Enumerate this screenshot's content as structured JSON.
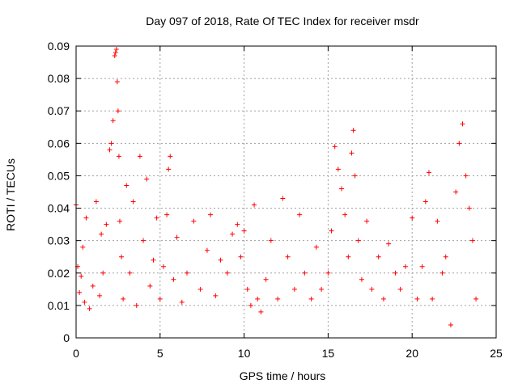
{
  "chart_data": {
    "type": "scatter",
    "title": "Day 097 of 2018, Rate Of TEC Index for receiver msdr",
    "xlabel": "GPS time / hours",
    "ylabel": "ROTI / TECUs",
    "xlim": [
      0,
      25
    ],
    "ylim": [
      0,
      0.09
    ],
    "x_ticks": [
      "0",
      "5",
      "10",
      "15",
      "20",
      "25"
    ],
    "y_ticks": [
      "0",
      "0.01",
      "0.02",
      "0.03",
      "0.04",
      "0.05",
      "0.06",
      "0.07",
      "0.08",
      "0.09"
    ],
    "x_tick_values": [
      0,
      5,
      10,
      15,
      20,
      25
    ],
    "y_tick_values": [
      0,
      0.01,
      0.02,
      0.03,
      0.04,
      0.05,
      0.06,
      0.07,
      0.08,
      0.09
    ],
    "grid": true,
    "marker": "+",
    "colors": {
      "series": "#ff0000",
      "grid": "#a0a0a0",
      "axis": "#000000"
    },
    "series": [
      {
        "x": [
          0.0,
          0.1,
          0.2,
          0.3,
          0.4,
          0.5,
          0.6,
          0.8,
          1.0,
          1.2,
          1.4,
          1.5,
          1.6,
          1.8,
          2.0,
          2.1,
          2.2,
          2.3,
          2.35,
          2.4,
          2.45,
          2.5,
          2.55,
          2.6,
          2.7,
          2.8,
          3.0,
          3.2,
          3.4,
          3.6,
          3.8,
          4.0,
          4.2,
          4.4,
          4.6,
          4.8,
          5.0,
          5.2,
          5.4,
          5.5,
          5.6,
          5.8,
          6.0,
          6.3,
          6.6,
          7.0,
          7.4,
          7.8,
          8.0,
          8.3,
          8.6,
          9.0,
          9.3,
          9.6,
          9.8,
          10.0,
          10.2,
          10.4,
          10.6,
          10.8,
          11.0,
          11.3,
          11.6,
          12.0,
          12.3,
          12.6,
          13.0,
          13.3,
          13.6,
          14.0,
          14.3,
          14.6,
          15.0,
          15.2,
          15.4,
          15.6,
          15.8,
          16.0,
          16.2,
          16.4,
          16.5,
          16.6,
          16.8,
          17.0,
          17.3,
          17.6,
          18.0,
          18.3,
          18.6,
          19.0,
          19.3,
          19.6,
          20.0,
          20.3,
          20.6,
          20.8,
          21.0,
          21.2,
          21.5,
          21.8,
          22.0,
          22.3,
          22.6,
          22.8,
          23.0,
          23.2,
          23.4,
          23.6,
          23.8
        ],
        "y": [
          0.041,
          0.022,
          0.014,
          0.019,
          0.028,
          0.011,
          0.037,
          0.009,
          0.016,
          0.042,
          0.013,
          0.032,
          0.02,
          0.035,
          0.058,
          0.06,
          0.067,
          0.087,
          0.088,
          0.089,
          0.079,
          0.07,
          0.056,
          0.036,
          0.025,
          0.012,
          0.047,
          0.02,
          0.042,
          0.01,
          0.056,
          0.03,
          0.049,
          0.016,
          0.024,
          0.037,
          0.012,
          0.022,
          0.038,
          0.052,
          0.056,
          0.018,
          0.031,
          0.011,
          0.02,
          0.036,
          0.015,
          0.027,
          0.038,
          0.013,
          0.024,
          0.02,
          0.032,
          0.035,
          0.025,
          0.033,
          0.015,
          0.01,
          0.041,
          0.012,
          0.008,
          0.018,
          0.03,
          0.012,
          0.043,
          0.025,
          0.015,
          0.038,
          0.02,
          0.012,
          0.028,
          0.015,
          0.02,
          0.033,
          0.059,
          0.052,
          0.046,
          0.038,
          0.025,
          0.057,
          0.064,
          0.05,
          0.03,
          0.018,
          0.036,
          0.015,
          0.025,
          0.012,
          0.029,
          0.02,
          0.015,
          0.022,
          0.037,
          0.012,
          0.022,
          0.042,
          0.051,
          0.012,
          0.036,
          0.02,
          0.025,
          0.004,
          0.045,
          0.06,
          0.066,
          0.05,
          0.04,
          0.03,
          0.012
        ]
      }
    ]
  }
}
